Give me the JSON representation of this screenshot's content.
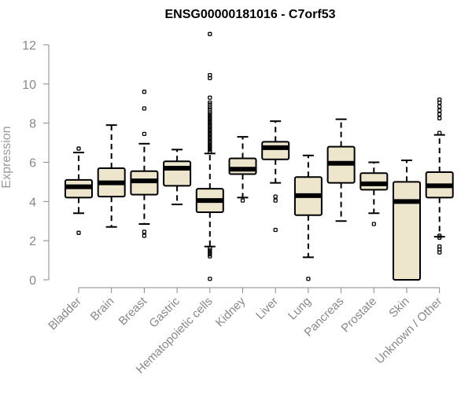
{
  "chart_data": {
    "type": "box",
    "title": "ENSG00000181016 - C7orf53",
    "xlabel": "",
    "ylabel": "Expression",
    "ylim": [
      0,
      12
    ],
    "yticks": [
      0,
      2,
      4,
      6,
      8,
      10,
      12
    ],
    "ytick_labels": [
      "0",
      "2",
      "4",
      "6",
      "8",
      "10",
      "12"
    ],
    "grid": false,
    "colors": {
      "box_fill": "#EDE6CD",
      "box_stroke": "#000000",
      "axis": "#888888"
    },
    "categories": [
      "Bladder",
      "Brain",
      "Breast",
      "Gastric",
      "Hematopoietic cells",
      "Kidney",
      "Liver",
      "Lung",
      "Pancreas",
      "Prostate",
      "Skin",
      "Unknown / Other"
    ],
    "boxes": [
      {
        "label": "Bladder",
        "whisker_low": 3.4,
        "q1": 4.2,
        "median": 4.75,
        "q3": 5.1,
        "whisker_high": 6.5,
        "outliers": [
          6.7,
          2.4
        ]
      },
      {
        "label": "Brain",
        "whisker_low": 2.7,
        "q1": 4.25,
        "median": 4.95,
        "q3": 5.7,
        "whisker_high": 7.9,
        "outliers": []
      },
      {
        "label": "Breast",
        "whisker_low": 2.85,
        "q1": 4.35,
        "median": 5.05,
        "q3": 5.55,
        "whisker_high": 6.95,
        "outliers": [
          9.6,
          8.75,
          7.45,
          2.45,
          2.25
        ]
      },
      {
        "label": "Gastric",
        "whisker_low": 3.85,
        "q1": 4.8,
        "median": 5.7,
        "q3": 6.05,
        "whisker_high": 6.65,
        "outliers": []
      },
      {
        "label": "Hematopoietic cells",
        "whisker_low": 1.7,
        "q1": 3.45,
        "median": 4.05,
        "q3": 4.65,
        "whisker_high": 6.45,
        "outliers": [
          12.55,
          10.45,
          10.3,
          9.3,
          9.05,
          8.95,
          8.8,
          8.7,
          8.55,
          8.45,
          8.35,
          8.25,
          8.15,
          8.05,
          7.95,
          7.85,
          7.75,
          7.65,
          7.55,
          7.45,
          7.35,
          7.25,
          7.15,
          7.05,
          6.95,
          6.85,
          6.75,
          6.65,
          6.55,
          1.6,
          1.5,
          1.4,
          1.3,
          1.2,
          0.05
        ]
      },
      {
        "label": "Kidney",
        "whisker_low": 4.2,
        "q1": 5.4,
        "median": 5.65,
        "q3": 6.2,
        "whisker_high": 7.3,
        "outliers": [
          4.05
        ]
      },
      {
        "label": "Liver",
        "whisker_low": 4.95,
        "q1": 6.15,
        "median": 6.75,
        "q3": 7.05,
        "whisker_high": 8.1,
        "outliers": [
          4.25,
          4.05,
          2.55
        ]
      },
      {
        "label": "Lung",
        "whisker_low": 1.15,
        "q1": 3.3,
        "median": 4.3,
        "q3": 5.25,
        "whisker_high": 6.35,
        "outliers": [
          0.05
        ]
      },
      {
        "label": "Pancreas",
        "whisker_low": 3.0,
        "q1": 4.95,
        "median": 5.95,
        "q3": 6.8,
        "whisker_high": 8.2,
        "outliers": []
      },
      {
        "label": "Prostate",
        "whisker_low": 3.4,
        "q1": 4.6,
        "median": 4.9,
        "q3": 5.45,
        "whisker_high": 6.0,
        "outliers": [
          2.85
        ]
      },
      {
        "label": "Skin",
        "whisker_low": 0.0,
        "q1": 0.0,
        "median": 4.0,
        "q3": 5.0,
        "whisker_high": 6.1,
        "outliers": []
      },
      {
        "label": "Unknown / Other",
        "whisker_low": 2.2,
        "q1": 4.2,
        "median": 4.8,
        "q3": 5.5,
        "whisker_high": 7.4,
        "outliers": [
          9.2,
          9.05,
          8.85,
          8.65,
          8.45,
          8.25,
          7.5,
          2.25,
          2.15,
          1.7,
          1.55,
          1.4
        ]
      }
    ]
  }
}
